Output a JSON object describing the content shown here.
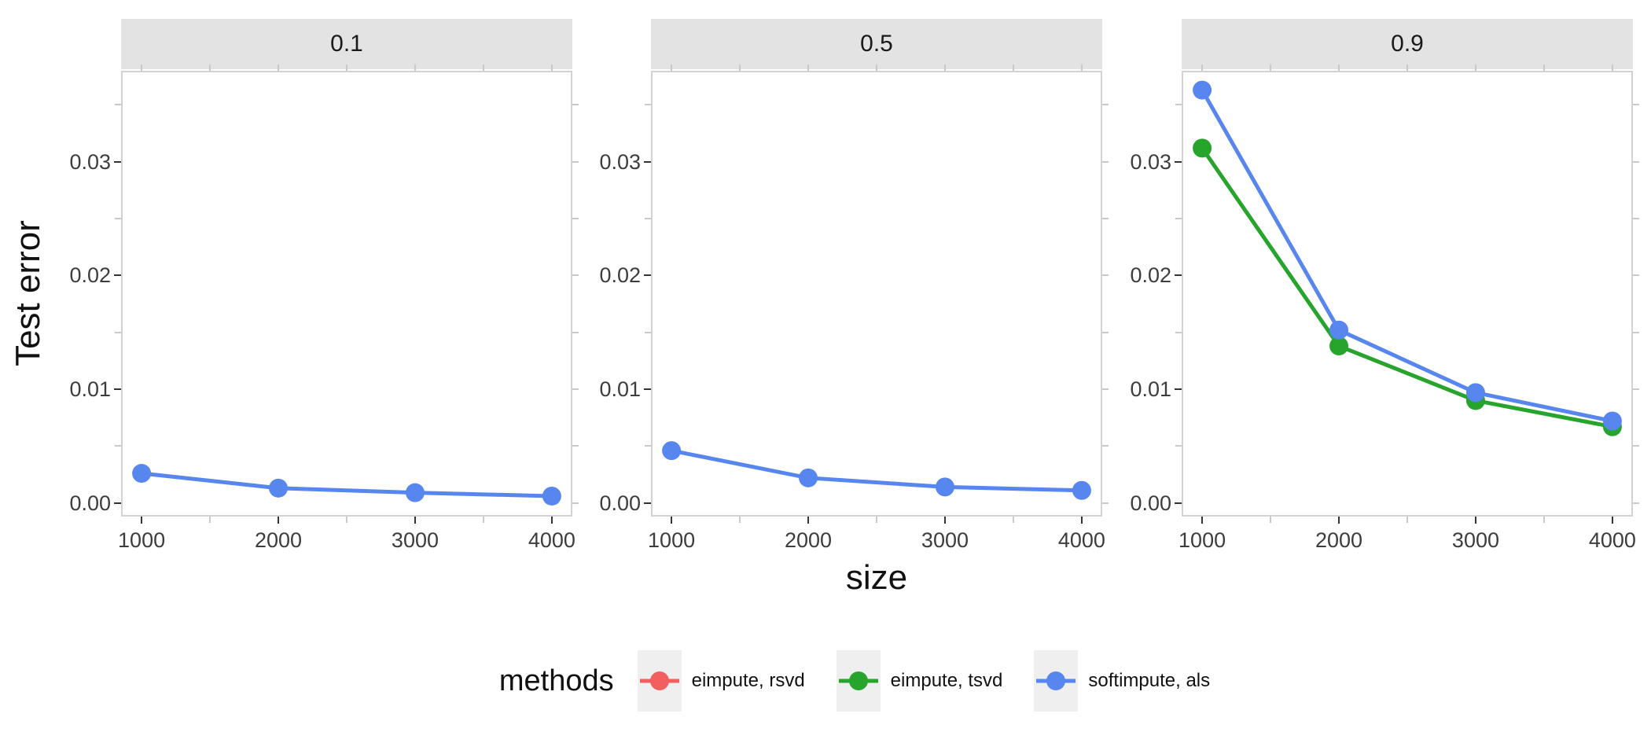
{
  "chart_data": {
    "type": "line",
    "facet_variable": "missing rate facets",
    "facet_labels": [
      "0.1",
      "0.5",
      "0.9"
    ],
    "x": [
      1000,
      2000,
      3000,
      4000
    ],
    "x_tick_labels": [
      "1000",
      "2000",
      "3000",
      "4000"
    ],
    "y_tick_values": [
      0,
      0.01,
      0.02,
      0.03
    ],
    "y_tick_labels": [
      "0.00",
      "0.01",
      "0.02",
      "0.03"
    ],
    "x_minor_tick_values": [
      1000,
      1500,
      2000,
      2500,
      3000,
      3500,
      4000
    ],
    "y_minor_tick_values": [
      0,
      0.005,
      0.01,
      0.015,
      0.02,
      0.025,
      0.03,
      0.035
    ],
    "xlabel": "size",
    "ylabel": "Test error",
    "x_domain": [
      850,
      4150
    ],
    "y_domain": [
      -0.0012,
      0.038
    ],
    "grid": "off",
    "legend": {
      "title": "methods",
      "position": "bottom",
      "entries": [
        {
          "label": "eimpute, rsvd",
          "color": "#F15F5F"
        },
        {
          "label": "eimpute, tsvd",
          "color": "#27A42C"
        },
        {
          "label": "softimpute, als",
          "color": "#5787EE"
        }
      ]
    },
    "facets": [
      {
        "label": "0.1",
        "series": [
          {
            "name": "softimpute, als",
            "color": "#5787EE",
            "values": [
              0.0026,
              0.0013,
              0.0009,
              0.0006
            ]
          }
        ]
      },
      {
        "label": "0.5",
        "series": [
          {
            "name": "softimpute, als",
            "color": "#5787EE",
            "values": [
              0.0046,
              0.0022,
              0.0014,
              0.0011
            ]
          }
        ]
      },
      {
        "label": "0.9",
        "series": [
          {
            "name": "eimpute, tsvd",
            "color": "#27A42C",
            "values": [
              0.0312,
              0.0138,
              0.009,
              0.0067
            ]
          },
          {
            "name": "softimpute, als",
            "color": "#5787EE",
            "values": [
              0.0363,
              0.0152,
              0.0097,
              0.0072
            ]
          }
        ]
      }
    ]
  },
  "style_colors": {
    "strip_background": "#E3E3E3",
    "panel_border": "#D2D2D2",
    "major_tick": "#333333",
    "minor_tick": "#C9C9C9",
    "tick_label": "#3D3D3D",
    "legend_key_background": "#EFEFEF"
  }
}
